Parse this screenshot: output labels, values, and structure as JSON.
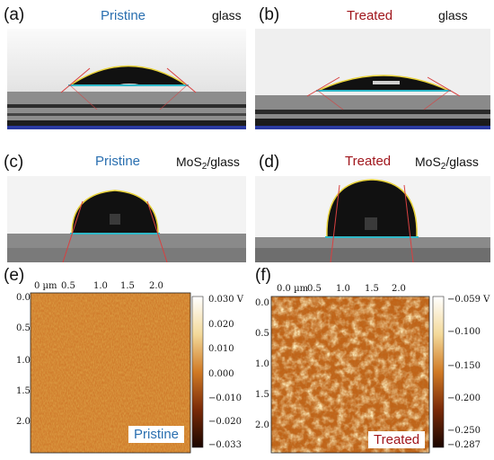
{
  "panels": {
    "a": {
      "letter": "(a)",
      "condition": "Pristine",
      "substrate": "glass"
    },
    "b": {
      "letter": "(b)",
      "condition": "Treated",
      "substrate": "glass"
    },
    "c": {
      "letter": "(c)",
      "condition": "Pristine",
      "substrate_main": "MoS",
      "substrate_sub": "2",
      "substrate_tail": "/glass"
    },
    "d": {
      "letter": "(d)",
      "condition": "Treated",
      "substrate_main": "MoS",
      "substrate_sub": "2",
      "substrate_tail": "/glass"
    },
    "e": {
      "letter": "(e)",
      "label": "Pristine",
      "x_ticks": [
        "0 µm",
        "0.5",
        "1.0",
        "1.5",
        "2.0"
      ],
      "y_ticks": [
        "0.0",
        "0.5",
        "1.0",
        "1.5",
        "2.0"
      ],
      "colorbar_ticks": [
        "0.030 V",
        "0.020",
        "0.010",
        "0.000",
        "−0.010",
        "−0.020",
        "−0.033"
      ]
    },
    "f": {
      "letter": "(f)",
      "label": "Treated",
      "x_ticks": [
        "0.0 µm",
        "0.5",
        "1.0",
        "1.5",
        "2.0"
      ],
      "y_ticks": [
        "0.0",
        "0.5",
        "1.0",
        "1.5",
        "2.0"
      ],
      "colorbar_ticks": [
        "−0.059 V",
        "−0.100",
        "−0.150",
        "−0.200",
        "−0.250",
        "−0.287"
      ]
    }
  },
  "colors": {
    "pristine": "#2a6fb0",
    "treated": "#a0161c",
    "baseline": "#2fb8c8",
    "fit": "#e8d23a",
    "tangent": "#d84040"
  }
}
